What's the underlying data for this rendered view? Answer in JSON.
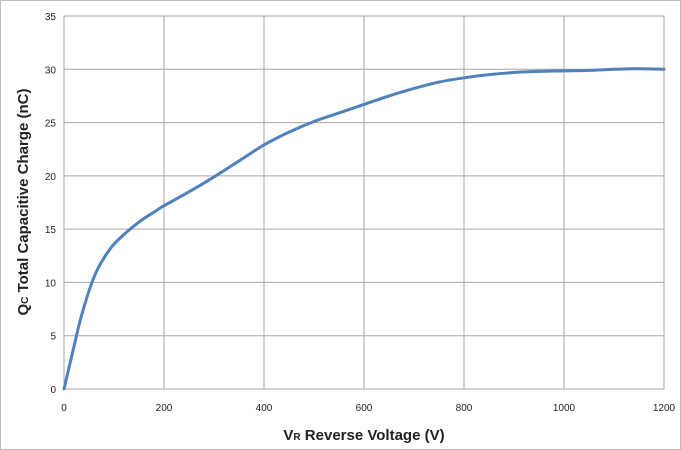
{
  "chart_data": {
    "type": "line",
    "xlabel_prefix": "V",
    "xlabel_sub": "R",
    "xlabel_rest": " Reverse Voltage (V)",
    "ylabel_prefix": "Q",
    "ylabel_sub": "C",
    "ylabel_rest": " Total Capacitive Charge (nC)",
    "xlim": [
      0,
      1200
    ],
    "ylim": [
      0,
      35
    ],
    "xticks": [
      0,
      200,
      400,
      600,
      800,
      1000,
      1200
    ],
    "yticks": [
      0,
      5,
      10,
      15,
      20,
      25,
      30,
      35
    ],
    "grid": true,
    "line_color": "#4f81bd",
    "series": [
      {
        "x": [
          0,
          10,
          20,
          30,
          40,
          50,
          60,
          70,
          80,
          90,
          100,
          120,
          140,
          160,
          180,
          200,
          250,
          300,
          350,
          400,
          450,
          500,
          550,
          600,
          650,
          700,
          750,
          800,
          850,
          900,
          950,
          1000,
          1050,
          1100,
          1150,
          1200
        ],
        "y": [
          0,
          2.0,
          4.0,
          6.0,
          7.7,
          9.2,
          10.5,
          11.5,
          12.3,
          13.0,
          13.6,
          14.5,
          15.3,
          16.0,
          16.6,
          17.2,
          18.5,
          19.9,
          21.4,
          22.9,
          24.1,
          25.1,
          25.9,
          26.7,
          27.5,
          28.2,
          28.8,
          29.2,
          29.5,
          29.7,
          29.8,
          29.85,
          29.9,
          30.0,
          30.05,
          30.0
        ]
      }
    ]
  }
}
